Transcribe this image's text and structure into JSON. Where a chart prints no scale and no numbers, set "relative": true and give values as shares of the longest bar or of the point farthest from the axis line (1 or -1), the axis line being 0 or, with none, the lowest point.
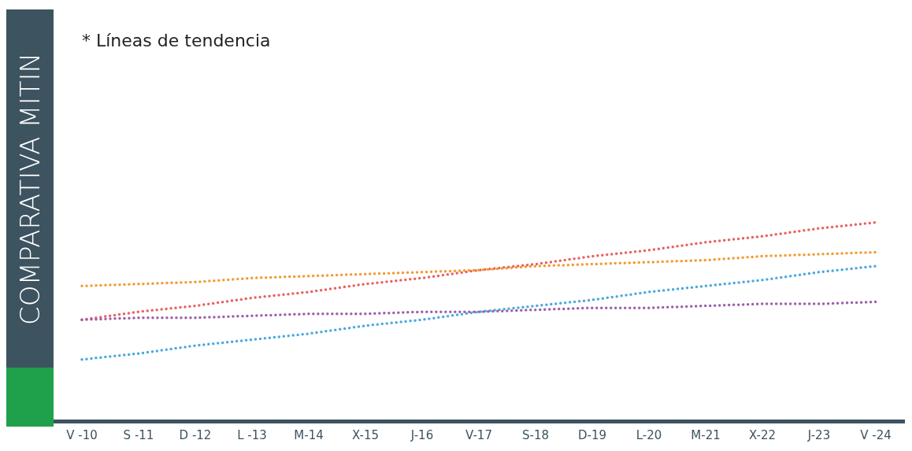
{
  "chart_data": {
    "type": "line",
    "title": "COMPARATIVA MITIN",
    "annotations": [
      "* Líneas de tendencia"
    ],
    "relative": true,
    "line_style": "dotted",
    "legend": false,
    "grid": false,
    "tick_labels": "x",
    "categories": [
      "V -10",
      "S -11",
      "D -12",
      "L -13",
      "M-14",
      "X-15",
      "J-16",
      "V-17",
      "S-18",
      "D-19",
      "L-20",
      "M-21",
      "X-22",
      "J-23",
      "V -24"
    ],
    "series": [
      {
        "color": "#e8615f",
        "values": [
          0.51,
          0.55,
          0.58,
          0.62,
          0.65,
          0.69,
          0.72,
          0.76,
          0.79,
          0.83,
          0.86,
          0.9,
          0.93,
          0.97,
          1
        ]
      },
      {
        "color": "#4aa8df",
        "values": [
          0.31,
          0.34,
          0.38,
          0.41,
          0.44,
          0.48,
          0.51,
          0.55,
          0.58,
          0.61,
          0.65,
          0.68,
          0.71,
          0.75,
          0.78
        ]
      },
      {
        "color": "#f39a2f",
        "values": [
          0.68,
          0.69,
          0.7,
          0.72,
          0.73,
          0.74,
          0.75,
          0.76,
          0.78,
          0.79,
          0.8,
          0.81,
          0.83,
          0.84,
          0.85
        ]
      },
      {
        "color": "#9b5fa8",
        "values": [
          0.51,
          0.52,
          0.52,
          0.53,
          0.54,
          0.54,
          0.55,
          0.55,
          0.56,
          0.57,
          0.57,
          0.58,
          0.59,
          0.59,
          0.6
        ]
      }
    ]
  }
}
